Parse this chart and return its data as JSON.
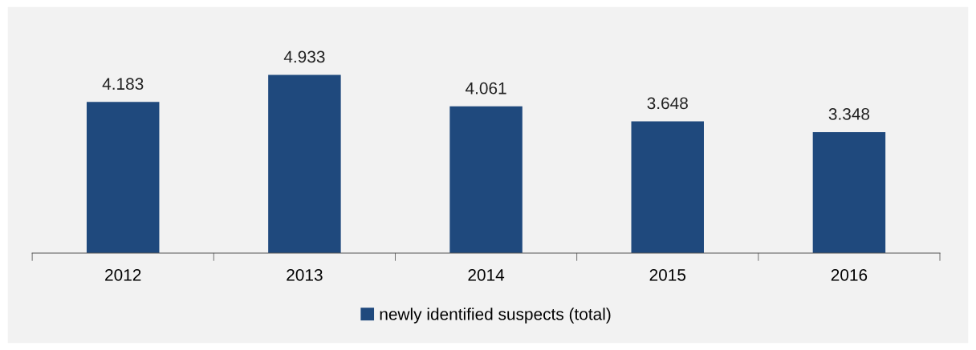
{
  "chart_data": {
    "type": "bar",
    "categories": [
      "2012",
      "2013",
      "2014",
      "2015",
      "2016"
    ],
    "series": [
      {
        "name": "newly identified suspects (total)",
        "color": "#1f497d",
        "values": [
          4183,
          4933,
          4061,
          3648,
          3348
        ],
        "value_labels": [
          "4.183",
          "4.933",
          "4.061",
          "3.648",
          "3.348"
        ]
      }
    ],
    "tick_labels": "x",
    "grid": false,
    "legend": "bottom"
  }
}
